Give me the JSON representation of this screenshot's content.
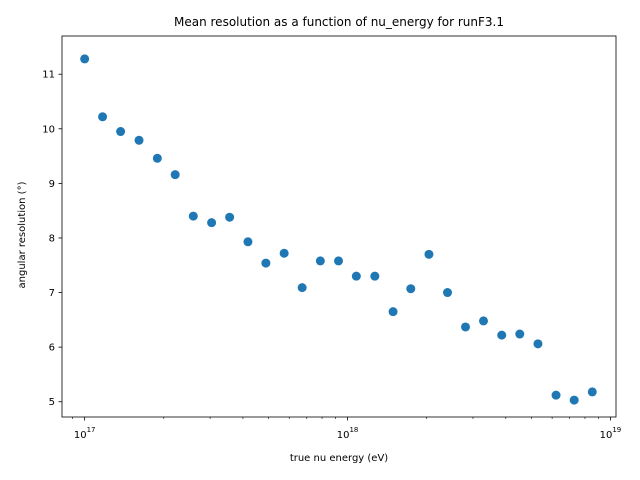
{
  "chart_data": {
    "type": "scatter",
    "title": "Mean resolution as a function of nu_energy for runF3.1",
    "xlabel": "true nu energy (eV)",
    "ylabel": "angular resolution (°)",
    "xscale": "log",
    "xlim": [
      8.2e+16,
      1.05e+19
    ],
    "ylim": [
      4.72,
      11.7
    ],
    "xticks": [
      {
        "value": 1e+17,
        "base": "10",
        "exp": "17"
      },
      {
        "value": 1e+18,
        "base": "10",
        "exp": "18"
      },
      {
        "value": 1e+19,
        "base": "10",
        "exp": "19"
      }
    ],
    "yticks": [
      5,
      6,
      7,
      8,
      9,
      10,
      11
    ],
    "grid": false,
    "legend": "none",
    "marker_color": "#1f77b4",
    "points": [
      {
        "x": 1e+17,
        "y": 11.28
      },
      {
        "x": 1.17e+17,
        "y": 10.22
      },
      {
        "x": 1.37e+17,
        "y": 9.95
      },
      {
        "x": 1.61e+17,
        "y": 9.79
      },
      {
        "x": 1.89e+17,
        "y": 9.46
      },
      {
        "x": 2.21e+17,
        "y": 9.16
      },
      {
        "x": 2.59e+17,
        "y": 8.4
      },
      {
        "x": 3.04e+17,
        "y": 8.28
      },
      {
        "x": 3.56e+17,
        "y": 8.38
      },
      {
        "x": 4.18e+17,
        "y": 7.93
      },
      {
        "x": 4.89e+17,
        "y": 7.54
      },
      {
        "x": 5.74e+17,
        "y": 7.72
      },
      {
        "x": 6.72e+17,
        "y": 7.09
      },
      {
        "x": 7.88e+17,
        "y": 7.58
      },
      {
        "x": 9.24e+17,
        "y": 7.58
      },
      {
        "x": 1.08e+18,
        "y": 7.3
      },
      {
        "x": 1.27e+18,
        "y": 7.3
      },
      {
        "x": 1.49e+18,
        "y": 6.65
      },
      {
        "x": 1.74e+18,
        "y": 7.07
      },
      {
        "x": 2.04e+18,
        "y": 7.7
      },
      {
        "x": 2.4e+18,
        "y": 7.0
      },
      {
        "x": 2.81e+18,
        "y": 6.37
      },
      {
        "x": 3.29e+18,
        "y": 6.48
      },
      {
        "x": 3.86e+18,
        "y": 6.22
      },
      {
        "x": 4.52e+18,
        "y": 6.24
      },
      {
        "x": 5.3e+18,
        "y": 6.06
      },
      {
        "x": 6.21e+18,
        "y": 5.12
      },
      {
        "x": 7.28e+18,
        "y": 5.03
      },
      {
        "x": 8.53e+18,
        "y": 5.18
      }
    ]
  }
}
